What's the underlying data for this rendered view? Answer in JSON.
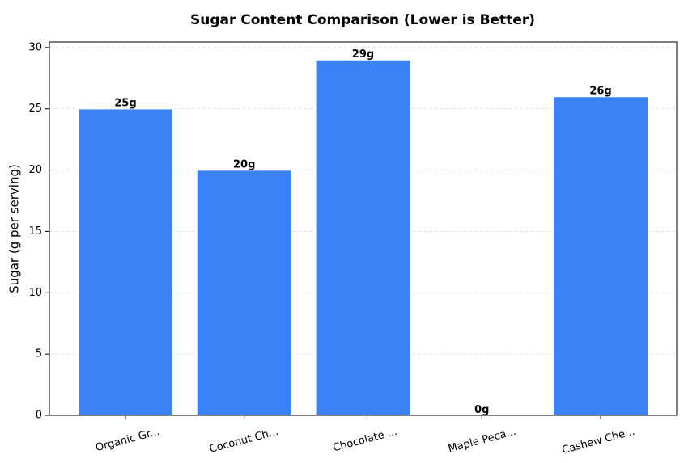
{
  "chart_data": {
    "type": "bar",
    "title": "Sugar Content Comparison (Lower is Better)",
    "y_label": "Sugar (g per serving)",
    "categories": [
      "Organic Gr...",
      "Coconut Ch...",
      "Chocolate ...",
      "Maple Peca...",
      "Cashew Che..."
    ],
    "values": [
      25,
      20,
      29,
      0,
      26
    ],
    "value_labels": [
      "25g",
      "20g",
      "29g",
      "0g",
      "26g"
    ],
    "color": "#3b82f6",
    "ylim": [
      0,
      30.45
    ],
    "yticks": [
      0,
      5,
      10,
      15,
      20,
      25,
      30
    ],
    "grid": true
  }
}
